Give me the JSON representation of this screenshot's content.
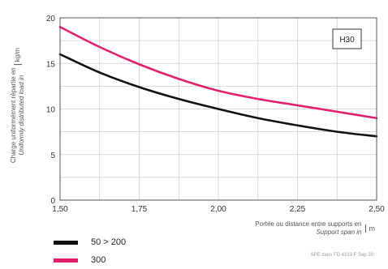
{
  "chart_data": {
    "type": "line",
    "x_ticks": [
      "1,50",
      "1,75",
      "2,00",
      "2,25",
      "2,50"
    ],
    "y_ticks": [
      "0",
      "5",
      "10",
      "15",
      "20"
    ],
    "xlim": [
      1.5,
      2.5
    ],
    "ylim": [
      0,
      20
    ],
    "grid": true,
    "ylabel_lines": [
      "Charge uniformément répartie en",
      "Uniformly distributed load in"
    ],
    "ylabel_unit": "kg/m",
    "xlabel_lines": [
      "Portée ou distance entre supports en",
      "Support span in"
    ],
    "xlabel_unit": "m",
    "box_label": "H30",
    "series": [
      {
        "name": "50 > 200",
        "color": "#111111",
        "x": [
          1.5,
          1.625,
          1.75,
          1.875,
          2.0,
          2.125,
          2.25,
          2.375,
          2.5
        ],
        "y": [
          16.0,
          14.0,
          12.4,
          11.1,
          10.0,
          9.0,
          8.2,
          7.5,
          7.0
        ]
      },
      {
        "name": "300",
        "color": "#e0206f",
        "x": [
          1.5,
          1.625,
          1.75,
          1.875,
          2.0,
          2.125,
          2.25,
          2.375,
          2.5
        ],
        "y": [
          19.0,
          16.8,
          14.9,
          13.3,
          12.0,
          11.1,
          10.4,
          9.7,
          9.0
        ]
      }
    ]
  },
  "footnote": "SPE    dans FD 4103 F Sep 20"
}
